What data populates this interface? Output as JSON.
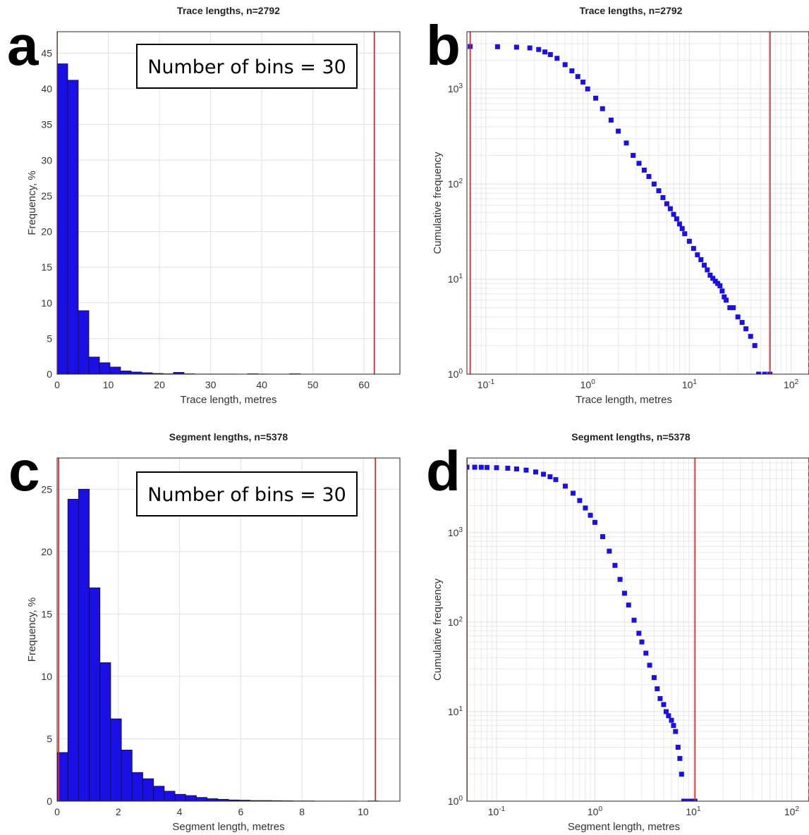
{
  "colors": {
    "bar": "#1a10e6",
    "marker": "#1a10e6",
    "bound_line": "#d42a2a",
    "grid": "#e1e1e1",
    "axis": "#262626"
  },
  "chart_data": [
    {
      "panel_label": "a",
      "type": "bar",
      "title": "Trace lengths, n=2792",
      "xlabel": "Trace length, metres",
      "ylabel": "Frequency, %",
      "xlim": [
        0,
        67
      ],
      "ylim": [
        0,
        48
      ],
      "xticks": [
        0,
        10,
        20,
        30,
        40,
        50,
        60
      ],
      "yticks": [
        0,
        5,
        10,
        15,
        20,
        25,
        30,
        35,
        40,
        45
      ],
      "grid": true,
      "annotation": "Number of bins = 30",
      "bin_edges": [
        0,
        2.07,
        4.13,
        6.2,
        8.27,
        10.33,
        12.4,
        14.47,
        16.53,
        18.6,
        20.67,
        22.73,
        24.8,
        26.87,
        28.93,
        31.0,
        33.07,
        35.13,
        37.2,
        39.27,
        41.33,
        43.4,
        45.47,
        47.53,
        49.6,
        51.67,
        53.73,
        55.8,
        57.87,
        59.93,
        62.0
      ],
      "values": [
        43.5,
        41.2,
        8.9,
        2.4,
        1.6,
        1.0,
        0.45,
        0.3,
        0.2,
        0.1,
        0.05,
        0.25,
        0.05,
        0.02,
        0.02,
        0.02,
        0.02,
        0.0,
        0.05,
        0.02,
        0.0,
        0.0,
        0.05,
        0.0,
        0.0,
        0.0,
        0.0,
        0.0,
        0.0,
        0.0
      ],
      "vlines": [
        0,
        62
      ]
    },
    {
      "panel_label": "b",
      "type": "scatter",
      "title": "Trace lengths, n=2792",
      "xlabel": "Trace length, metres",
      "ylabel": "Cumulative frequency",
      "xscale": "log",
      "yscale": "log",
      "xlim": [
        0.065,
        150
      ],
      "ylim": [
        1,
        4000
      ],
      "xtick_exponents": [
        -1,
        0,
        1,
        2
      ],
      "ytick_exponents": [
        0,
        1,
        2,
        3
      ],
      "grid": true,
      "x": [
        0.07,
        0.13,
        0.2,
        0.27,
        0.33,
        0.38,
        0.43,
        0.5,
        0.6,
        0.7,
        0.8,
        0.9,
        1.0,
        1.2,
        1.4,
        1.7,
        2.0,
        2.4,
        2.8,
        3.2,
        3.6,
        4.0,
        4.5,
        5.0,
        5.5,
        6.0,
        6.5,
        7.0,
        7.5,
        8.0,
        8.5,
        9.0,
        10.0,
        11.0,
        12.0,
        13.0,
        14.0,
        15.0,
        16.0,
        17.0,
        18.0,
        19.0,
        20.0,
        21.0,
        22.0,
        23.0,
        25.0,
        27.0,
        30.0,
        33.0,
        36.0,
        40.0,
        44.0,
        48.0,
        55.0,
        62.0
      ],
      "y": [
        2792,
        2780,
        2750,
        2700,
        2600,
        2450,
        2300,
        2100,
        1800,
        1550,
        1350,
        1180,
        1000,
        800,
        620,
        470,
        360,
        270,
        200,
        165,
        140,
        120,
        100,
        85,
        72,
        62,
        55,
        48,
        43,
        38,
        34,
        30,
        25,
        21,
        18,
        16,
        14,
        12.5,
        11,
        10.2,
        9.5,
        9,
        8.5,
        7.5,
        6.5,
        6,
        5,
        5,
        4,
        3.5,
        3,
        2.5,
        2,
        1,
        1,
        1
      ],
      "vlines": [
        0.07,
        62,
        150
      ]
    },
    {
      "panel_label": "c",
      "type": "bar",
      "title": "Segment lengths, n=5378",
      "xlabel": "Segment length, metres",
      "ylabel": "Frequency, %",
      "xlim": [
        0,
        11.2
      ],
      "ylim": [
        0,
        27.5
      ],
      "xticks": [
        0,
        2,
        4,
        6,
        8,
        10
      ],
      "yticks": [
        0,
        5,
        10,
        15,
        20,
        25
      ],
      "grid": true,
      "annotation": "Number of bins = 30",
      "bin_edges": [
        0,
        0.35,
        0.7,
        1.05,
        1.4,
        1.75,
        2.1,
        2.45,
        2.8,
        3.15,
        3.5,
        3.85,
        4.2,
        4.55,
        4.9,
        5.25,
        5.6,
        5.95,
        6.3,
        6.65,
        7.0,
        7.35,
        7.7,
        8.05,
        8.4,
        8.75,
        9.1,
        9.45,
        9.8,
        10.15,
        10.5
      ],
      "values": [
        3.9,
        24.2,
        25.0,
        17.1,
        11.1,
        6.6,
        4.1,
        2.3,
        1.8,
        1.2,
        0.8,
        0.55,
        0.45,
        0.3,
        0.2,
        0.15,
        0.1,
        0.08,
        0.05,
        0.05,
        0.04,
        0.03,
        0.02,
        0.02,
        0.01,
        0.01,
        0.01,
        0.01,
        0.0,
        0.02
      ],
      "vlines": [
        0.05,
        10.4
      ]
    },
    {
      "panel_label": "d",
      "type": "scatter",
      "title": "Segment lengths, n=5378",
      "xlabel": "Segment length, metres",
      "ylabel": "Cumulative frequency",
      "xscale": "log",
      "yscale": "log",
      "xlim": [
        0.05,
        150
      ],
      "ylim": [
        1,
        6800
      ],
      "xtick_exponents": [
        -1,
        0,
        1,
        2
      ],
      "ytick_exponents": [
        0,
        1,
        2,
        3
      ],
      "grid": true,
      "x": [
        0.05,
        0.06,
        0.07,
        0.08,
        0.1,
        0.13,
        0.16,
        0.2,
        0.25,
        0.3,
        0.35,
        0.4,
        0.5,
        0.6,
        0.7,
        0.8,
        0.9,
        1.0,
        1.2,
        1.4,
        1.6,
        1.8,
        2.0,
        2.2,
        2.5,
        2.8,
        3.0,
        3.3,
        3.6,
        4.0,
        4.3,
        4.6,
        5.0,
        5.3,
        5.6,
        6.0,
        6.3,
        6.6,
        7.0,
        7.3,
        7.6,
        8.0,
        8.5,
        9.0,
        9.5,
        10.4
      ],
      "y": [
        5378,
        5370,
        5360,
        5340,
        5300,
        5230,
        5130,
        4980,
        4750,
        4480,
        4200,
        3900,
        3300,
        2750,
        2280,
        1880,
        1560,
        1300,
        900,
        620,
        430,
        300,
        210,
        155,
        105,
        75,
        60,
        45,
        33,
        24,
        18,
        14,
        12,
        10,
        9,
        8,
        7,
        6,
        4,
        3,
        2,
        1,
        1,
        1,
        1,
        1
      ],
      "vlines": [
        0.05,
        10.4,
        150
      ]
    }
  ]
}
